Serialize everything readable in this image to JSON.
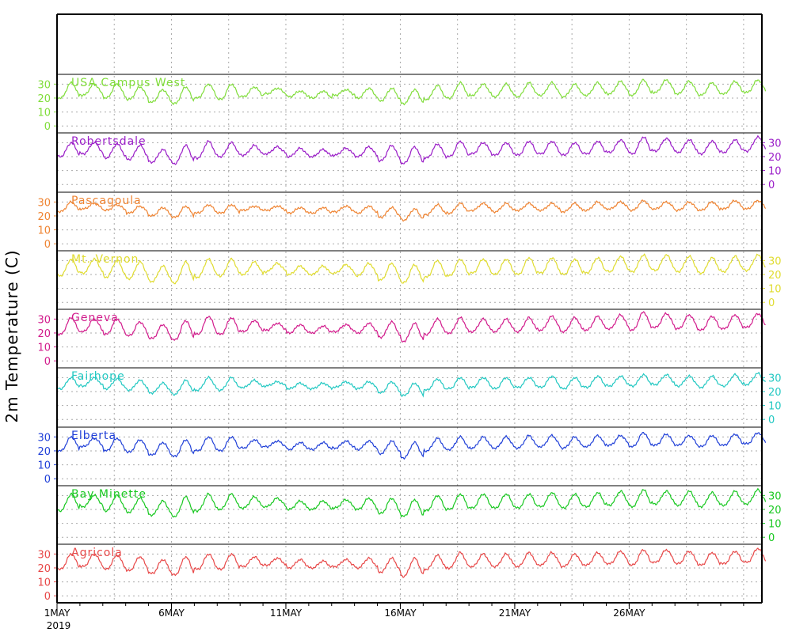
{
  "chart_data": {
    "type": "line",
    "ylabel": "2m Temperature (C)",
    "x_start": "2019-05-01",
    "x_end": "2019-05-31",
    "x_ticks": [
      {
        "day": 1,
        "label": "1MAY",
        "sublabel": "2019"
      },
      {
        "day": 6,
        "label": "6MAY"
      },
      {
        "day": 11,
        "label": "11MAY"
      },
      {
        "day": 16,
        "label": "16MAY"
      },
      {
        "day": 21,
        "label": "21MAY"
      },
      {
        "day": 26,
        "label": "26MAY"
      }
    ],
    "yticks": [
      0,
      10,
      20,
      30
    ],
    "ylim": [
      -5,
      37
    ],
    "grid": true,
    "station_axis_sides": [
      "left",
      "right",
      "left",
      "right",
      "left",
      "right",
      "left",
      "right",
      "left"
    ],
    "stations": [
      {
        "name": "USA Campus West",
        "color": "#80dd3a",
        "daily_min": [
          20,
          22,
          20,
          19,
          17,
          16,
          20,
          19,
          21,
          23,
          21,
          20,
          22,
          20,
          18,
          16,
          19,
          20,
          22,
          21,
          21,
          22,
          21,
          22,
          23,
          22,
          24,
          23,
          22,
          23,
          24
        ],
        "daily_max": [
          31,
          30,
          30,
          28,
          26,
          28,
          30,
          30,
          28,
          27,
          25,
          25,
          26,
          27,
          27,
          26,
          29,
          31,
          30,
          30,
          31,
          31,
          30,
          31,
          32,
          33,
          33,
          32,
          31,
          32,
          33
        ]
      },
      {
        "name": "Robertsdale",
        "color": "#9a1dc8",
        "daily_min": [
          20,
          22,
          19,
          18,
          16,
          15,
          19,
          20,
          21,
          22,
          20,
          20,
          21,
          20,
          17,
          15,
          19,
          20,
          22,
          21,
          21,
          22,
          21,
          22,
          23,
          22,
          24,
          23,
          22,
          23,
          24
        ],
        "daily_max": [
          30,
          30,
          29,
          28,
          25,
          28,
          31,
          30,
          28,
          27,
          26,
          25,
          26,
          27,
          28,
          27,
          29,
          31,
          30,
          30,
          31,
          31,
          30,
          31,
          32,
          34,
          33,
          32,
          31,
          32,
          34
        ]
      },
      {
        "name": "Pascagoula",
        "color": "#ef8432",
        "daily_min": [
          23,
          25,
          24,
          22,
          20,
          19,
          22,
          22,
          24,
          24,
          22,
          22,
          23,
          22,
          19,
          17,
          21,
          22,
          24,
          23,
          24,
          24,
          23,
          24,
          25,
          24,
          25,
          24,
          24,
          25,
          25
        ],
        "daily_max": [
          30,
          29,
          28,
          27,
          26,
          27,
          28,
          28,
          27,
          27,
          26,
          26,
          27,
          27,
          26,
          25,
          28,
          29,
          29,
          29,
          29,
          29,
          29,
          30,
          30,
          31,
          30,
          30,
          30,
          31,
          31
        ]
      },
      {
        "name": "Mt. Vernon",
        "color": "#e0dc30",
        "daily_min": [
          19,
          21,
          18,
          17,
          15,
          14,
          18,
          19,
          20,
          22,
          20,
          20,
          21,
          19,
          16,
          14,
          18,
          19,
          21,
          20,
          20,
          21,
          20,
          21,
          22,
          22,
          23,
          22,
          21,
          22,
          23
        ],
        "daily_max": [
          31,
          31,
          30,
          29,
          26,
          29,
          31,
          31,
          29,
          28,
          26,
          26,
          27,
          28,
          28,
          27,
          30,
          31,
          31,
          31,
          32,
          32,
          31,
          32,
          33,
          34,
          34,
          33,
          32,
          33,
          34
        ]
      },
      {
        "name": "Geneva",
        "color": "#d21b8c",
        "daily_min": [
          19,
          21,
          19,
          18,
          16,
          15,
          19,
          19,
          21,
          22,
          20,
          20,
          21,
          20,
          17,
          14,
          19,
          20,
          21,
          21,
          21,
          22,
          21,
          22,
          23,
          22,
          24,
          23,
          22,
          23,
          24
        ],
        "daily_max": [
          31,
          30,
          30,
          28,
          26,
          29,
          32,
          31,
          29,
          27,
          26,
          25,
          26,
          27,
          28,
          27,
          30,
          31,
          30,
          30,
          31,
          32,
          31,
          32,
          33,
          35,
          34,
          33,
          32,
          33,
          34
        ]
      },
      {
        "name": "Fairhope",
        "color": "#22c8c2",
        "daily_min": [
          22,
          24,
          22,
          21,
          19,
          18,
          21,
          21,
          23,
          24,
          22,
          22,
          23,
          22,
          19,
          17,
          21,
          22,
          23,
          22,
          23,
          23,
          22,
          23,
          24,
          24,
          25,
          24,
          23,
          24,
          25
        ],
        "daily_max": [
          30,
          30,
          29,
          28,
          26,
          28,
          30,
          30,
          28,
          27,
          26,
          26,
          27,
          27,
          27,
          26,
          29,
          30,
          30,
          30,
          30,
          31,
          30,
          31,
          31,
          32,
          32,
          31,
          31,
          32,
          33
        ]
      },
      {
        "name": "Elberta",
        "color": "#2040d8",
        "daily_min": [
          20,
          23,
          20,
          19,
          17,
          16,
          20,
          20,
          22,
          23,
          21,
          21,
          22,
          21,
          18,
          15,
          20,
          21,
          22,
          22,
          22,
          23,
          22,
          23,
          24,
          23,
          24,
          24,
          23,
          24,
          25
        ],
        "daily_max": [
          30,
          29,
          29,
          28,
          26,
          28,
          30,
          30,
          28,
          27,
          26,
          26,
          27,
          27,
          27,
          26,
          29,
          30,
          30,
          30,
          31,
          31,
          30,
          31,
          31,
          33,
          32,
          31,
          31,
          32,
          33
        ]
      },
      {
        "name": "Bay Minette",
        "color": "#18c820",
        "daily_min": [
          19,
          22,
          19,
          18,
          16,
          15,
          19,
          20,
          21,
          22,
          20,
          20,
          21,
          20,
          17,
          15,
          19,
          20,
          21,
          21,
          21,
          22,
          21,
          22,
          23,
          22,
          24,
          23,
          22,
          23,
          24
        ],
        "daily_max": [
          31,
          30,
          30,
          28,
          26,
          29,
          31,
          31,
          29,
          28,
          26,
          26,
          27,
          28,
          28,
          27,
          30,
          31,
          31,
          31,
          31,
          32,
          31,
          32,
          33,
          34,
          33,
          33,
          32,
          33,
          34
        ]
      },
      {
        "name": "Agricola",
        "color": "#e84848",
        "daily_min": [
          19,
          21,
          19,
          18,
          16,
          15,
          19,
          19,
          21,
          22,
          20,
          20,
          21,
          20,
          17,
          14,
          19,
          20,
          21,
          21,
          21,
          22,
          21,
          22,
          23,
          22,
          24,
          23,
          22,
          23,
          24
        ],
        "daily_max": [
          30,
          30,
          29,
          28,
          26,
          28,
          30,
          30,
          28,
          27,
          26,
          25,
          26,
          27,
          27,
          27,
          29,
          31,
          30,
          30,
          31,
          31,
          30,
          31,
          32,
          33,
          33,
          32,
          31,
          32,
          34
        ]
      }
    ]
  }
}
